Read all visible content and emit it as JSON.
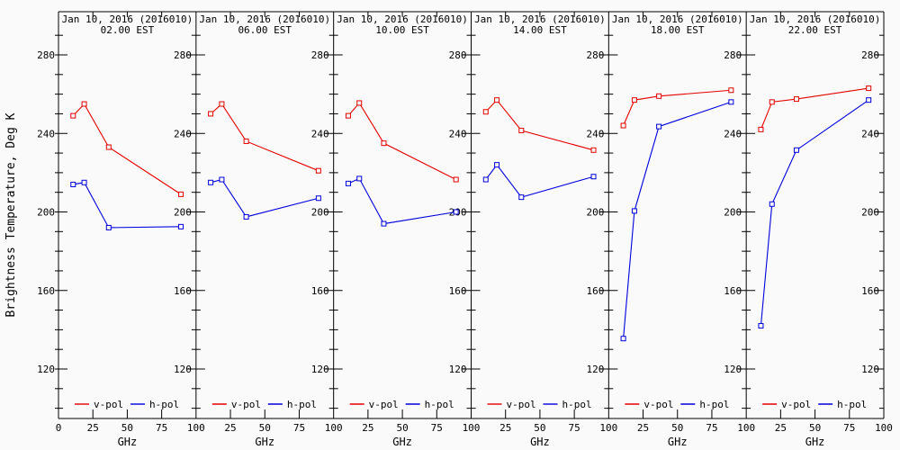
{
  "figure": {
    "background": "#fafafa",
    "axis_color": "#000000"
  },
  "chart_data": {
    "type": "line",
    "ylabel": "Brightness Temperature, Deg K",
    "xlabel": "GHz",
    "x_tick_labels": [
      "0",
      "25",
      "50",
      "75",
      "100"
    ],
    "x_ticks": [
      0,
      25,
      50,
      75,
      100
    ],
    "xlim": [
      0,
      100
    ],
    "y_tick_labels": [
      "280",
      "240",
      "200",
      "160",
      "120"
    ],
    "y_ticks": [
      280,
      240,
      200,
      160,
      120
    ],
    "y_minor_step": 10,
    "ylim": [
      100,
      300
    ],
    "grid": false,
    "legend_position": "bottom-inside-each-panel",
    "legend": [
      {
        "label": "v-pol",
        "color": "#e60000"
      },
      {
        "label": "h-pol",
        "color": "#0000dd"
      }
    ],
    "x": [
      10.65,
      18.7,
      36.5,
      89
    ],
    "panels": [
      {
        "title_line1": "Jan 10, 2016 (2016010)",
        "title_line2": "02.00 EST",
        "series": [
          {
            "name": "v-pol",
            "color": "#e60000",
            "values": [
              249,
              255,
              233,
              209
            ]
          },
          {
            "name": "h-pol",
            "color": "#0000dd",
            "values": [
              214,
              215,
              192,
              192.5
            ]
          }
        ]
      },
      {
        "title_line1": "Jan 10, 2016 (2016010)",
        "title_line2": "06.00 EST",
        "series": [
          {
            "name": "v-pol",
            "color": "#e60000",
            "values": [
              250,
              255,
              236,
              221
            ]
          },
          {
            "name": "h-pol",
            "color": "#0000dd",
            "values": [
              215,
              216.5,
              197.5,
              207
            ]
          }
        ]
      },
      {
        "title_line1": "Jan 10, 2016 (2016010)",
        "title_line2": "10.00 EST",
        "series": [
          {
            "name": "v-pol",
            "color": "#e60000",
            "values": [
              249,
              255.5,
              235,
              216.5
            ]
          },
          {
            "name": "h-pol",
            "color": "#0000dd",
            "values": [
              214.5,
              217,
              194,
              200
            ]
          }
        ]
      },
      {
        "title_line1": "Jan 10, 2016 (2016010)",
        "title_line2": "14.00 EST",
        "series": [
          {
            "name": "v-pol",
            "color": "#e60000",
            "values": [
              251,
              257,
              241.5,
              231.5
            ]
          },
          {
            "name": "h-pol",
            "color": "#0000dd",
            "values": [
              216.5,
              224,
              207.5,
              218
            ]
          }
        ]
      },
      {
        "title_line1": "Jan 10, 2016 (2016010)",
        "title_line2": "18.00 EST",
        "series": [
          {
            "name": "v-pol",
            "color": "#e60000",
            "values": [
              244,
              257,
              259,
              262
            ]
          },
          {
            "name": "h-pol",
            "color": "#0000dd",
            "values": [
              135.5,
              200.5,
              243.5,
              256
            ]
          }
        ]
      },
      {
        "title_line1": "Jan 10, 2016 (2016010)",
        "title_line2": "22.00 EST",
        "series": [
          {
            "name": "v-pol",
            "color": "#e60000",
            "values": [
              242,
              256,
              257.5,
              263
            ]
          },
          {
            "name": "h-pol",
            "color": "#0000dd",
            "values": [
              142,
              204,
              231.5,
              257
            ]
          }
        ]
      }
    ]
  }
}
